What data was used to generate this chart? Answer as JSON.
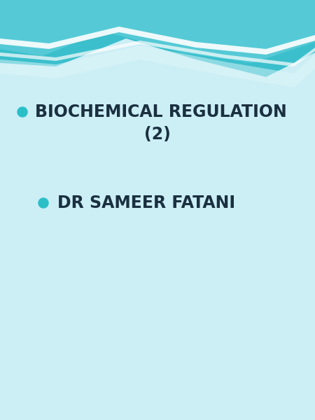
{
  "bg_color": "#cceef5",
  "teal_dark": "#3bbfcc",
  "teal_mid": "#5acdd8",
  "teal_light": "#7ddce6",
  "white_wave": "#dff6fa",
  "white_stripe": "#ffffff",
  "bullet_color": "#2bbfc8",
  "text_color": "#1a3040",
  "line1_text": "BIOCHEMICAL REGULATION",
  "line2_text": "(2)",
  "line3_text": "DR SAMEER FATANI",
  "text_fontsize": 17,
  "bullet_size": 10,
  "figwidth": 4.5,
  "figheight": 6.0,
  "dpi": 100
}
